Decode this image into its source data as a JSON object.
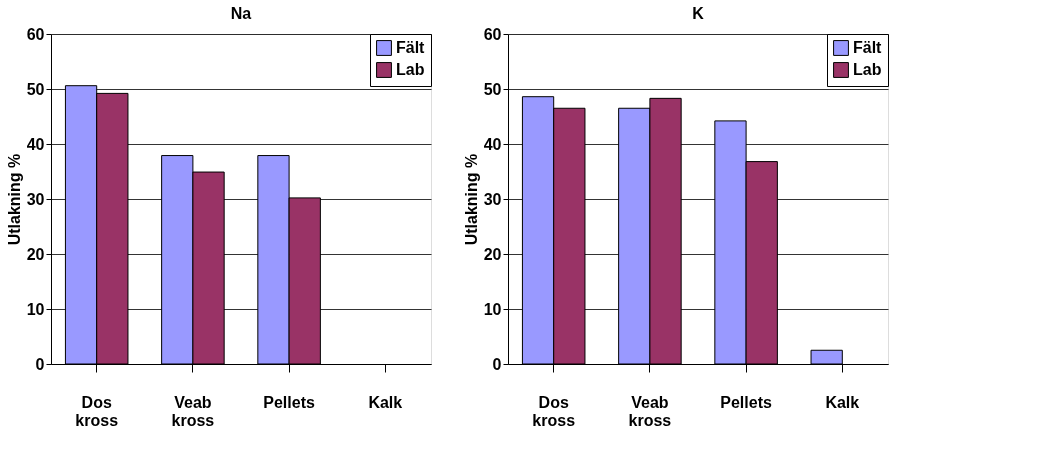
{
  "chart_data": [
    {
      "type": "bar",
      "title": "Na",
      "ylabel": "Utlakning %",
      "categories": [
        "Dos kross",
        "Veab kross",
        "Pellets",
        "Kalk"
      ],
      "ylim": [
        0,
        60
      ],
      "yticks": [
        0,
        10,
        20,
        30,
        40,
        50,
        60
      ],
      "grid": "y",
      "legend": "top right",
      "series": [
        {
          "name": "Fält",
          "color": "#9999ff",
          "values": [
            50.6,
            37.9,
            37.9,
            null
          ]
        },
        {
          "name": "Lab",
          "color": "#993366",
          "values": [
            49.2,
            34.9,
            30.2,
            null
          ]
        }
      ]
    },
    {
      "type": "bar",
      "title": "K",
      "ylabel": "Utlakning %",
      "categories": [
        "Dos kross",
        "Veab kross",
        "Pellets",
        "Kalk"
      ],
      "ylim": [
        0,
        60
      ],
      "yticks": [
        0,
        10,
        20,
        30,
        40,
        50,
        60
      ],
      "grid": "y",
      "legend": "top right",
      "series": [
        {
          "name": "Fält",
          "color": "#9999ff",
          "values": [
            48.6,
            46.5,
            44.2,
            2.5
          ]
        },
        {
          "name": "Lab",
          "color": "#993366",
          "values": [
            46.5,
            48.3,
            36.8,
            null
          ]
        }
      ]
    }
  ]
}
